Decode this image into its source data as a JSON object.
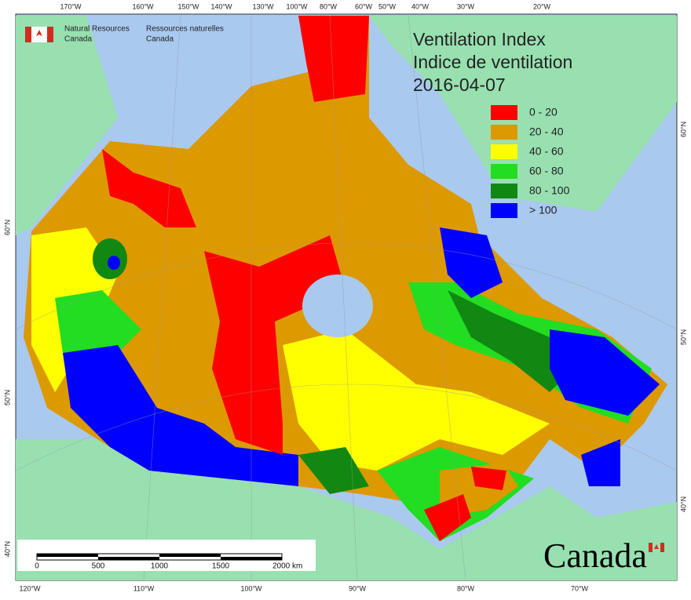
{
  "agency": {
    "english": [
      "Natural Resources",
      "Canada"
    ],
    "french": [
      "Ressources naturelles",
      "Canada"
    ]
  },
  "title": [
    "Ventilation Index",
    "Indice de ventilation",
    "2016-04-07"
  ],
  "legend": [
    {
      "label": "0 - 20",
      "color": "#ff0000"
    },
    {
      "label": "20 - 40",
      "color": "#dd9900"
    },
    {
      "label": "40 - 60",
      "color": "#ffff00"
    },
    {
      "label": "60 - 80",
      "color": "#22dd22"
    },
    {
      "label": "80 - 100",
      "color": "#118811"
    },
    {
      "label": "> 100",
      "color": "#0000ff"
    }
  ],
  "top_labels": [
    "170°W",
    "160°W",
    "150°W",
    "140°W",
    "130°W",
    "100°W",
    "80°W",
    "60°W",
    "50°W",
    "40°W",
    "30°W",
    "20°W"
  ],
  "bottom_labels": [
    "120°W",
    "110°W",
    "100°W",
    "90°W",
    "80°W",
    "70°W"
  ],
  "left_labels": [
    "60°N",
    "50°N",
    "40°N"
  ],
  "right_labels": [
    "60°N",
    "50°N",
    "40°N"
  ],
  "scale_labels": [
    "0",
    "500",
    "1000",
    "1500",
    "2000  km"
  ],
  "wordmark": "Canada"
}
